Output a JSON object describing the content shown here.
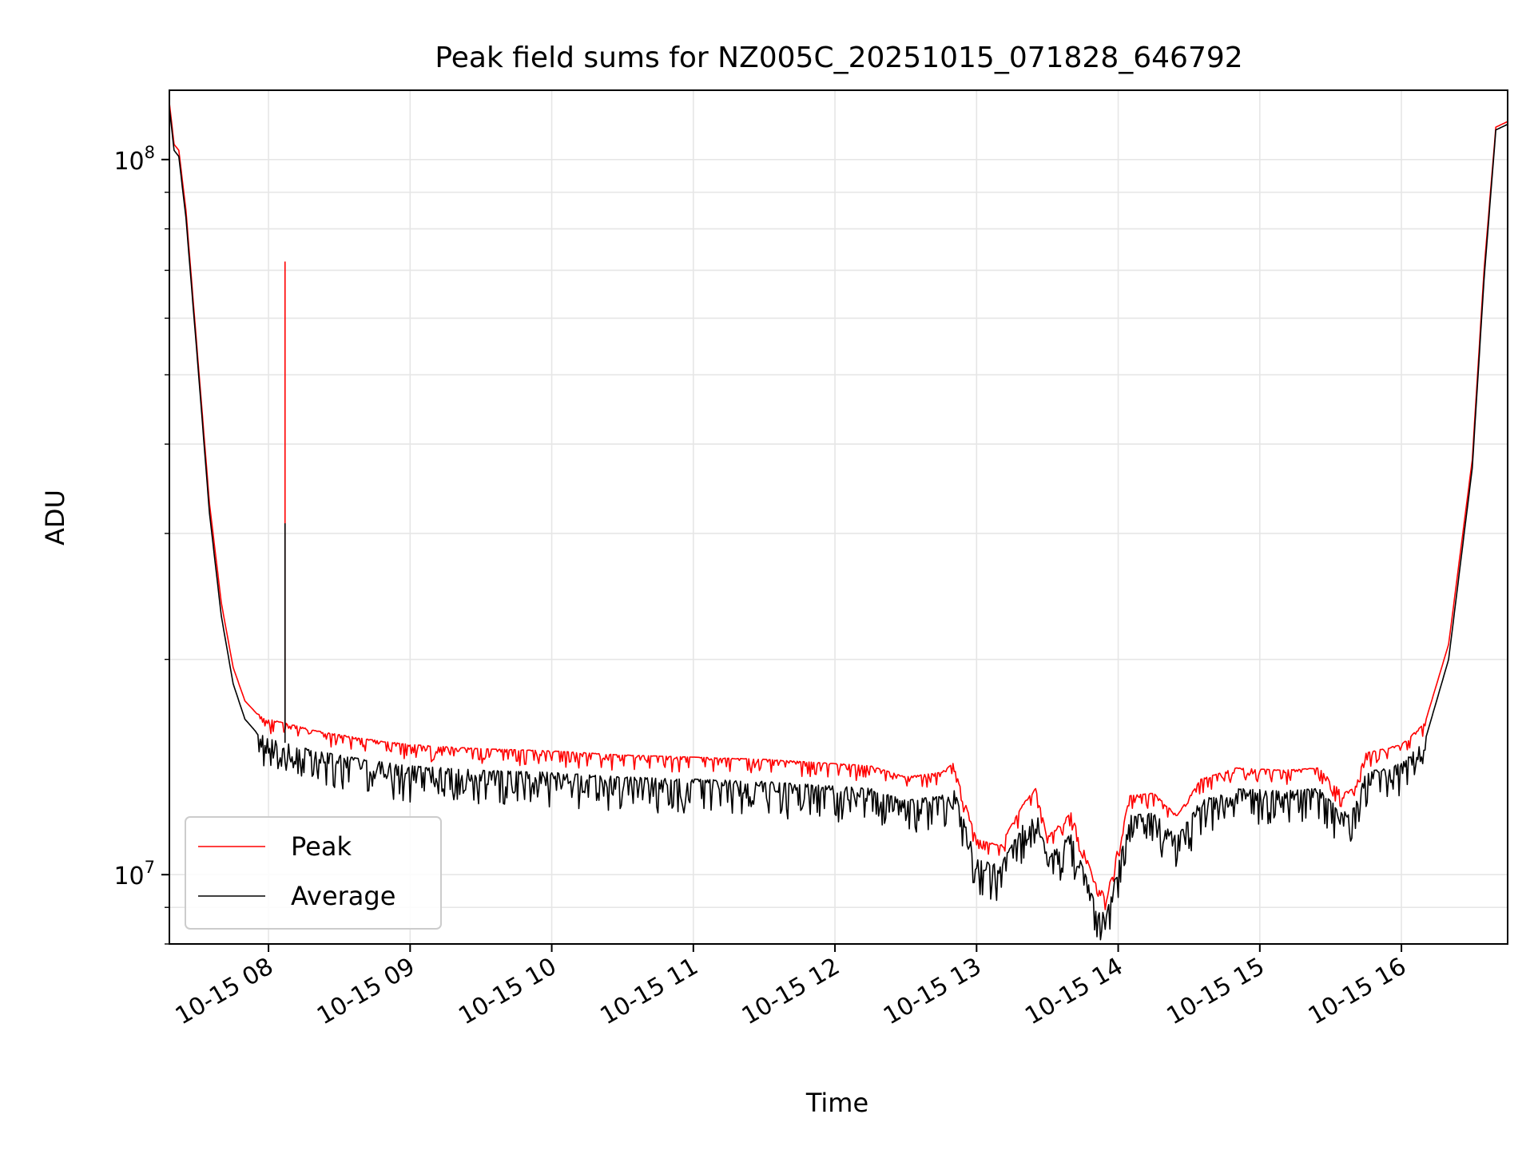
{
  "chart_data": {
    "type": "line",
    "title": "Peak field sums for NZ005C_20251015_071828_646792",
    "xlabel": "Time",
    "ylabel": "ADU",
    "yscale": "log",
    "ylim": [
      8000000,
      125000000
    ],
    "xlim": [
      "10-15 07:18",
      "10-15 16:45"
    ],
    "grid": true,
    "legend_position": "lower-left",
    "x_ticks": [
      {
        "label": "10-15 08",
        "t": "10-15 08:00"
      },
      {
        "label": "10-15 09",
        "t": "10-15 09:00"
      },
      {
        "label": "10-15 10",
        "t": "10-15 10:00"
      },
      {
        "label": "10-15 11",
        "t": "10-15 11:00"
      },
      {
        "label": "10-15 12",
        "t": "10-15 12:00"
      },
      {
        "label": "10-15 13",
        "t": "10-15 13:00"
      },
      {
        "label": "10-15 14",
        "t": "10-15 14:00"
      },
      {
        "label": "10-15 15",
        "t": "10-15 15:00"
      },
      {
        "label": "10-15 16",
        "t": "10-15 16:00"
      }
    ],
    "y_ticks": [
      {
        "value": 10000000,
        "base": "10",
        "exp": "7"
      },
      {
        "value": 100000000,
        "base": "10",
        "exp": "8"
      }
    ],
    "series": [
      {
        "name": "Peak",
        "color": "#ff0000",
        "x": [
          "10-15 07:18",
          "10-15 07:20",
          "10-15 07:22",
          "10-15 07:25",
          "10-15 07:30",
          "10-15 07:35",
          "10-15 07:40",
          "10-15 07:45",
          "10-15 07:50",
          "10-15 07:55",
          "10-15 08:00",
          "10-15 08:10",
          "10-15 08:20",
          "10-15 08:40",
          "10-15 09:00",
          "10-15 09:30",
          "10-15 10:00",
          "10-15 10:30",
          "10-15 11:00",
          "10-15 11:30",
          "10-15 12:00",
          "10-15 12:15",
          "10-15 12:30",
          "10-15 12:45",
          "10-15 12:50",
          "10-15 13:00",
          "10-15 13:10",
          "10-15 13:20",
          "10-15 13:25",
          "10-15 13:30",
          "10-15 13:40",
          "10-15 13:50",
          "10-15 13:55",
          "10-15 14:05",
          "10-15 14:15",
          "10-15 14:25",
          "10-15 14:35",
          "10-15 14:50",
          "10-15 15:10",
          "10-15 15:25",
          "10-15 15:35",
          "10-15 15:40",
          "10-15 15:45",
          "10-15 16:00",
          "10-15 16:10",
          "10-15 16:20",
          "10-15 16:30",
          "10-15 16:35",
          "10-15 16:40",
          "10-15 16:45"
        ],
        "y": [
          120000000,
          105000000,
          103000000,
          85000000,
          53000000,
          33000000,
          24000000,
          19500000,
          17500000,
          16800000,
          16500000,
          16200000,
          15900000,
          15500000,
          15200000,
          15000000,
          14900000,
          14700000,
          14600000,
          14500000,
          14300000,
          14200000,
          13700000,
          13900000,
          14300000,
          11200000,
          11000000,
          12600000,
          13200000,
          11300000,
          12200000,
          9800000,
          9300000,
          12900000,
          13000000,
          12100000,
          13600000,
          14100000,
          14000000,
          14100000,
          13000000,
          13200000,
          14800000,
          15200000,
          16300000,
          21000000,
          38000000,
          70000000,
          111000000,
          113000000
        ],
        "spikes": [
          {
            "x": "10-15 08:07",
            "y": 72000000
          }
        ]
      },
      {
        "name": "Average",
        "color": "#000000",
        "x": [
          "10-15 07:18",
          "10-15 07:20",
          "10-15 07:22",
          "10-15 07:25",
          "10-15 07:30",
          "10-15 07:35",
          "10-15 07:40",
          "10-15 07:45",
          "10-15 07:50",
          "10-15 07:55",
          "10-15 08:00",
          "10-15 08:10",
          "10-15 08:20",
          "10-15 08:40",
          "10-15 09:00",
          "10-15 09:30",
          "10-15 10:00",
          "10-15 10:30",
          "10-15 11:00",
          "10-15 11:30",
          "10-15 12:00",
          "10-15 12:15",
          "10-15 12:30",
          "10-15 12:45",
          "10-15 12:50",
          "10-15 13:00",
          "10-15 13:10",
          "10-15 13:20",
          "10-15 13:25",
          "10-15 13:30",
          "10-15 13:40",
          "10-15 13:50",
          "10-15 13:55",
          "10-15 14:05",
          "10-15 14:15",
          "10-15 14:25",
          "10-15 14:35",
          "10-15 14:50",
          "10-15 15:10",
          "10-15 15:25",
          "10-15 15:35",
          "10-15 15:40",
          "10-15 15:45",
          "10-15 16:00",
          "10-15 16:10",
          "10-15 16:20",
          "10-15 16:30",
          "10-15 16:35",
          "10-15 16:40",
          "10-15 16:45"
        ],
        "y": [
          118000000,
          103000000,
          101000000,
          83000000,
          52000000,
          32000000,
          23000000,
          18500000,
          16500000,
          15800000,
          15500000,
          15200000,
          14900000,
          14500000,
          14200000,
          14000000,
          13900000,
          13700000,
          13600000,
          13500000,
          13300000,
          13200000,
          12700000,
          12900000,
          13300000,
          10500000,
          10300000,
          11800000,
          12400000,
          10600000,
          11400000,
          9200000,
          8800000,
          12100000,
          12200000,
          11300000,
          12700000,
          13200000,
          13100000,
          13200000,
          12200000,
          12400000,
          13900000,
          14300000,
          15400000,
          20000000,
          37000000,
          68000000,
          110000000,
          112000000
        ],
        "spikes": [
          {
            "x": "10-15 08:07",
            "y": 31000000
          }
        ]
      }
    ]
  }
}
